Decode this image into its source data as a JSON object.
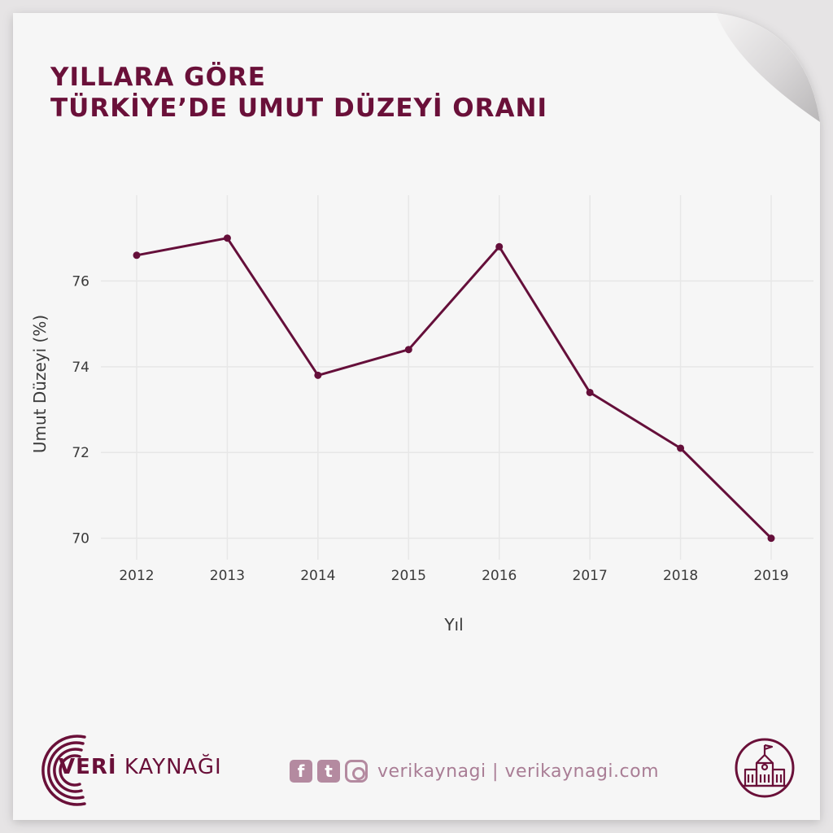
{
  "title": {
    "line1": "YILLARA GÖRE",
    "line2": "TÜRKİYE’DE UMUT DÜZEYİ ORANI"
  },
  "chart_data": {
    "type": "line",
    "x": [
      "2012",
      "2013",
      "2014",
      "2015",
      "2016",
      "2017",
      "2018",
      "2019"
    ],
    "series": [
      {
        "values": [
          76.6,
          77.0,
          73.8,
          74.4,
          76.8,
          73.4,
          72.1,
          70.0
        ]
      }
    ],
    "xlabel": "Yıl",
    "ylabel": "Umut Düzeyi (%)",
    "yticks": [
      "70",
      "72",
      "74",
      "76"
    ],
    "ylim": [
      69.5,
      78.0
    ],
    "grid": true,
    "line_color": "#650f3a"
  },
  "footer": {
    "brand_bold": "VERİ",
    "brand_rest": "KAYNAĞI",
    "social_text": "verikaynagi | verikaynagi.com",
    "facebook_glyph": "f",
    "twitter_glyph": "t"
  },
  "icons": {
    "brand": "signal-arcs-icon",
    "facebook": "facebook-icon",
    "twitter": "twitter-icon",
    "instagram": "instagram-icon",
    "badge": "school-building-icon"
  },
  "colors": {
    "accent": "#6a1039",
    "muted": "#b48aa0"
  }
}
